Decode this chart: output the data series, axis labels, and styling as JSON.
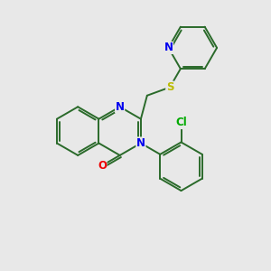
{
  "bg_color": "#e8e8e8",
  "bond_color": "#2a6a2a",
  "N_color": "#0000ee",
  "O_color": "#ee0000",
  "S_color": "#bbbb00",
  "Cl_color": "#00aa00",
  "font_size": 8.5,
  "line_width": 1.4,
  "fig_size": [
    3.0,
    3.0
  ],
  "dpi": 100,
  "xlim": [
    0,
    9
  ],
  "ylim": [
    0,
    9
  ]
}
